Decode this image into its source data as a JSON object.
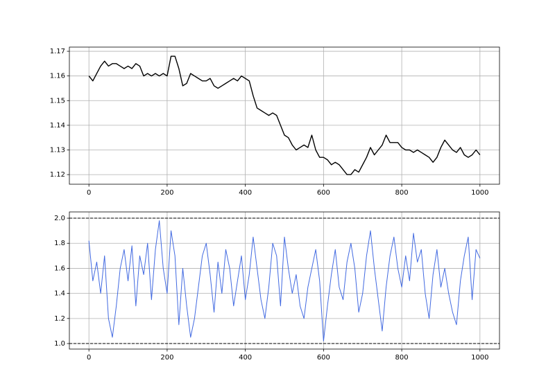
{
  "chart_data": [
    {
      "type": "line",
      "x": [
        0,
        10,
        20,
        30,
        40,
        50,
        60,
        70,
        80,
        90,
        100,
        110,
        120,
        130,
        140,
        150,
        160,
        170,
        180,
        190,
        200,
        210,
        220,
        230,
        240,
        250,
        260,
        270,
        280,
        290,
        300,
        310,
        320,
        330,
        340,
        350,
        360,
        370,
        380,
        390,
        400,
        410,
        420,
        430,
        440,
        450,
        460,
        470,
        480,
        490,
        500,
        510,
        520,
        530,
        540,
        550,
        560,
        570,
        580,
        590,
        600,
        610,
        620,
        630,
        640,
        650,
        660,
        670,
        680,
        690,
        700,
        710,
        720,
        730,
        740,
        750,
        760,
        770,
        780,
        790,
        800,
        810,
        820,
        830,
        840,
        850,
        860,
        870,
        880,
        890,
        900,
        910,
        920,
        930,
        940,
        950,
        960,
        970,
        980,
        990,
        1000
      ],
      "series": [
        {
          "color": "#000000",
          "values": [
            1.16,
            1.158,
            1.161,
            1.164,
            1.166,
            1.164,
            1.165,
            1.165,
            1.164,
            1.163,
            1.164,
            1.163,
            1.165,
            1.164,
            1.16,
            1.161,
            1.16,
            1.161,
            1.16,
            1.161,
            1.16,
            1.168,
            1.168,
            1.163,
            1.156,
            1.157,
            1.161,
            1.16,
            1.159,
            1.158,
            1.158,
            1.159,
            1.156,
            1.155,
            1.156,
            1.157,
            1.158,
            1.159,
            1.158,
            1.16,
            1.159,
            1.158,
            1.152,
            1.147,
            1.146,
            1.145,
            1.144,
            1.145,
            1.144,
            1.14,
            1.136,
            1.135,
            1.132,
            1.13,
            1.131,
            1.132,
            1.131,
            1.136,
            1.13,
            1.127,
            1.127,
            1.126,
            1.124,
            1.125,
            1.124,
            1.122,
            1.12,
            1.12,
            1.122,
            1.121,
            1.124,
            1.127,
            1.131,
            1.128,
            1.13,
            1.132,
            1.136,
            1.133,
            1.133,
            1.133,
            1.131,
            1.13,
            1.13,
            1.129,
            1.13,
            1.129,
            1.128,
            1.127,
            1.125,
            1.127,
            1.131,
            1.134,
            1.132,
            1.13,
            1.129,
            1.131,
            1.128,
            1.127,
            1.128,
            1.13,
            1.128
          ]
        }
      ],
      "xlim": [
        -50,
        1050
      ],
      "xticks": [
        0,
        200,
        400,
        600,
        800,
        1000
      ],
      "ylim": [
        1.1161,
        1.1717
      ],
      "yticks": [
        1.12,
        1.13,
        1.14,
        1.15,
        1.16,
        1.17
      ],
      "grid": true
    },
    {
      "type": "line",
      "x": [
        0,
        10,
        20,
        30,
        40,
        50,
        60,
        70,
        80,
        90,
        100,
        110,
        120,
        130,
        140,
        150,
        160,
        170,
        180,
        190,
        200,
        210,
        220,
        230,
        240,
        250,
        260,
        270,
        280,
        290,
        300,
        310,
        320,
        330,
        340,
        350,
        360,
        370,
        380,
        390,
        400,
        410,
        420,
        430,
        440,
        450,
        460,
        470,
        480,
        490,
        500,
        510,
        520,
        530,
        540,
        550,
        560,
        570,
        580,
        590,
        600,
        610,
        620,
        630,
        640,
        650,
        660,
        670,
        680,
        690,
        700,
        710,
        720,
        730,
        740,
        750,
        760,
        770,
        780,
        790,
        800,
        810,
        820,
        830,
        840,
        850,
        860,
        870,
        880,
        890,
        900,
        910,
        920,
        930,
        940,
        950,
        960,
        970,
        980,
        990,
        1000
      ],
      "series": [
        {
          "color": "#4169e1",
          "values": [
            1.82,
            1.5,
            1.65,
            1.4,
            1.7,
            1.2,
            1.05,
            1.3,
            1.6,
            1.75,
            1.5,
            1.78,
            1.3,
            1.7,
            1.55,
            1.8,
            1.35,
            1.75,
            1.98,
            1.6,
            1.4,
            1.9,
            1.7,
            1.15,
            1.6,
            1.3,
            1.05,
            1.2,
            1.45,
            1.7,
            1.8,
            1.55,
            1.25,
            1.65,
            1.4,
            1.75,
            1.6,
            1.3,
            1.5,
            1.7,
            1.35,
            1.55,
            1.85,
            1.6,
            1.35,
            1.2,
            1.45,
            1.8,
            1.7,
            1.3,
            1.85,
            1.6,
            1.4,
            1.55,
            1.3,
            1.2,
            1.45,
            1.6,
            1.75,
            1.5,
            1.02,
            1.3,
            1.55,
            1.75,
            1.45,
            1.35,
            1.65,
            1.8,
            1.6,
            1.25,
            1.4,
            1.7,
            1.9,
            1.6,
            1.35,
            1.1,
            1.45,
            1.7,
            1.85,
            1.6,
            1.45,
            1.7,
            1.5,
            1.88,
            1.65,
            1.75,
            1.4,
            1.2,
            1.55,
            1.75,
            1.45,
            1.6,
            1.4,
            1.25,
            1.15,
            1.5,
            1.7,
            1.85,
            1.35,
            1.75,
            1.68
          ]
        }
      ],
      "hlines": [
        1,
        2
      ],
      "hline_color": "#000000",
      "xlim": [
        -50,
        1050
      ],
      "xticks": [
        0,
        200,
        400,
        600,
        800,
        1000
      ],
      "ylim": [
        0.956,
        2.05
      ],
      "yticks": [
        {
          "value": 1,
          "label": "1.0"
        },
        1.2,
        1.4,
        1.6,
        1.8,
        {
          "value": 2,
          "label": "2.0"
        }
      ],
      "grid": true
    }
  ]
}
